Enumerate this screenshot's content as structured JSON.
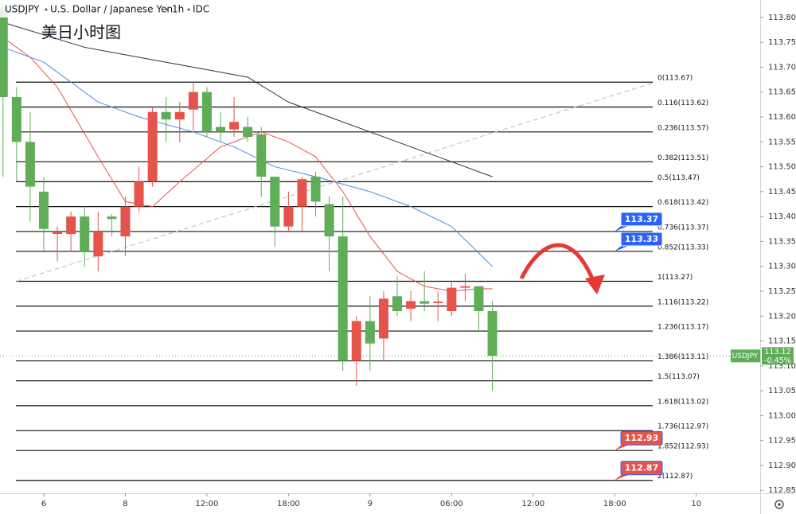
{
  "chart_data": {
    "type": "candlestick",
    "symbol": "USDJPY",
    "description": "U.S. Dollar / Japanese Yen",
    "interval": "1h",
    "source": "IDC",
    "subtitle": "美日小时图",
    "up_color": "#e5534b",
    "down_color": "#5fad56",
    "x": [
      -3,
      -2,
      -1,
      0,
      1,
      2,
      3,
      4,
      5,
      6,
      7,
      8,
      9,
      10,
      11,
      12,
      13,
      14,
      15,
      16,
      17,
      18,
      19,
      20,
      21,
      22,
      23,
      24,
      25,
      26,
      27,
      28,
      29,
      30,
      31,
      32,
      33
    ],
    "open": [
      113.82,
      113.64,
      113.55,
      113.45,
      113.365,
      113.365,
      113.4,
      113.32,
      113.4,
      113.36,
      113.42,
      113.47,
      113.61,
      113.595,
      113.615,
      113.65,
      113.58,
      113.575,
      113.58,
      113.565,
      113.48,
      113.38,
      113.42,
      113.48,
      113.425,
      113.36,
      113.11,
      113.19,
      113.155,
      113.24,
      113.215,
      113.23,
      113.226,
      113.21,
      113.257,
      113.26,
      113.21
    ],
    "high": [
      113.83,
      113.66,
      113.61,
      113.48,
      113.38,
      113.41,
      113.42,
      113.41,
      113.405,
      113.44,
      113.5,
      113.62,
      113.64,
      113.63,
      113.67,
      113.66,
      113.61,
      113.64,
      113.6,
      113.58,
      113.48,
      113.45,
      113.48,
      113.49,
      113.44,
      113.44,
      113.2,
      113.24,
      113.25,
      113.28,
      113.25,
      113.29,
      113.25,
      113.27,
      113.285,
      113.26,
      113.23
    ],
    "low": [
      113.48,
      113.47,
      113.39,
      113.33,
      113.31,
      113.33,
      113.3,
      113.29,
      113.36,
      113.32,
      113.41,
      113.46,
      113.55,
      113.55,
      113.57,
      113.56,
      113.55,
      113.56,
      113.55,
      113.44,
      113.34,
      113.37,
      113.37,
      113.4,
      113.29,
      113.09,
      113.06,
      113.09,
      113.11,
      113.2,
      113.19,
      113.21,
      113.19,
      113.2,
      113.23,
      113.17,
      113.05
    ],
    "close": [
      113.64,
      113.55,
      113.46,
      113.375,
      113.37,
      113.4,
      113.33,
      113.37,
      113.395,
      113.42,
      113.47,
      113.61,
      113.595,
      113.61,
      113.65,
      113.57,
      113.57,
      113.59,
      113.56,
      113.48,
      113.38,
      113.42,
      113.475,
      113.43,
      113.36,
      113.11,
      113.19,
      113.145,
      113.235,
      113.21,
      113.23,
      113.225,
      113.229,
      113.257,
      113.26,
      113.21,
      113.12
    ],
    "overlays": [
      {
        "color": "#333333",
        "x": [
          -3,
          3,
          9,
          15,
          18,
          21,
          26,
          30,
          33
        ],
        "values": [
          113.79,
          113.74,
          113.71,
          113.68,
          113.63,
          113.6,
          113.55,
          113.51,
          113.48
        ]
      },
      {
        "color": "#4a90d9",
        "x": [
          -3,
          0,
          4,
          7,
          11,
          14,
          17,
          20,
          24,
          27,
          30,
          33
        ],
        "values": [
          113.74,
          113.71,
          113.63,
          113.6,
          113.57,
          113.54,
          113.5,
          113.48,
          113.45,
          113.42,
          113.38,
          113.3
        ]
      },
      {
        "color": "#e5534b",
        "x": [
          -3,
          -1,
          1,
          4,
          6,
          8,
          10,
          13,
          16,
          18,
          20,
          22,
          24,
          26,
          28,
          30,
          32,
          33
        ],
        "values": [
          113.76,
          113.72,
          113.66,
          113.52,
          113.43,
          113.42,
          113.47,
          113.54,
          113.57,
          113.55,
          113.52,
          113.45,
          113.36,
          113.29,
          113.26,
          113.25,
          113.255,
          113.255
        ]
      }
    ],
    "trendline": {
      "color": "#c8c8d0",
      "x": [
        -2,
        45
      ],
      "values": [
        113.27,
        113.67
      ]
    },
    "levels": [
      {
        "label": "0(113.67)",
        "value": 113.67
      },
      {
        "label": "0.116(113.62)",
        "value": 113.62
      },
      {
        "label": "0.236(113.57)",
        "value": 113.57
      },
      {
        "label": "0.382(113.51)",
        "value": 113.51
      },
      {
        "label": "0.5(113.47)",
        "value": 113.47
      },
      {
        "label": "0.618(113.42)",
        "value": 113.42
      },
      {
        "label": "0.736(113.37)",
        "value": 113.37
      },
      {
        "label": "0.852(113.33)",
        "value": 113.33
      },
      {
        "label": "1(113.27)",
        "value": 113.27
      },
      {
        "label": "1.116(113.22)",
        "value": 113.22
      },
      {
        "label": "1.236(113.17)",
        "value": 113.17
      },
      {
        "label": "1.386(113.11)",
        "value": 113.11
      },
      {
        "label": "1.5(113.07)",
        "value": 113.07
      },
      {
        "label": "1.618(113.02)",
        "value": 113.02
      },
      {
        "label": "1.736(112.97)",
        "value": 112.97
      },
      {
        "label": "1.852(112.93)",
        "value": 112.93
      },
      {
        "label": "2(112.87)",
        "value": 112.87
      }
    ],
    "price_tags": [
      {
        "value": 113.37,
        "color": "#2962ff"
      },
      {
        "value": 113.33,
        "color": "#2962ff"
      },
      {
        "value": 112.93,
        "color": "#e5534b"
      },
      {
        "value": 112.87,
        "color": "#e5534b"
      }
    ],
    "last_price": 113.12,
    "change": {
      "value": -0.45,
      "label": "-0.45%"
    },
    "xlim": [
      -3.22,
      52.7
    ],
    "ylim": [
      112.844,
      113.835
    ],
    "xticks": [
      {
        "value": 0,
        "label": "6"
      },
      {
        "value": 6,
        "label": "8"
      },
      {
        "value": 12,
        "label": "12:00"
      },
      {
        "value": 18,
        "label": "18:00"
      },
      {
        "value": 24,
        "label": "9"
      },
      {
        "value": 30,
        "label": "06:00"
      },
      {
        "value": 36,
        "label": "12:00"
      },
      {
        "value": 42,
        "label": "18:00"
      },
      {
        "value": 48,
        "label": "10"
      }
    ],
    "yticks": [
      {
        "value": 113.8,
        "label": "113.80"
      },
      113.75,
      {
        "value": 113.7,
        "label": "113.70"
      },
      113.65,
      {
        "value": 113.6,
        "label": "113.60"
      },
      113.55,
      {
        "value": 113.5,
        "label": "113.50"
      },
      113.45,
      {
        "value": 113.4,
        "label": "113.40"
      },
      113.35,
      {
        "value": 113.3,
        "label": "113.30"
      },
      113.25,
      {
        "value": 113.2,
        "label": "113.20"
      },
      113.15,
      {
        "value": 113.1,
        "label": "113.10"
      },
      113.05,
      {
        "value": 113,
        "label": "113.00"
      },
      112.95,
      {
        "value": 112.9,
        "label": "112.90"
      },
      112.85
    ]
  }
}
